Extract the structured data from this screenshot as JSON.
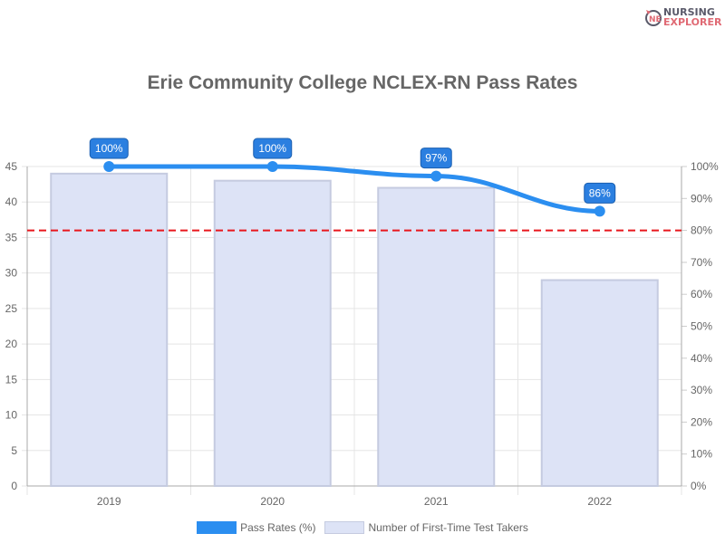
{
  "logo": {
    "line1": "NURSING",
    "line2": "EXPLORER"
  },
  "chart_data": {
    "type": "bar+line",
    "title": "Erie Community College NCLEX-RN Pass Rates",
    "categories": [
      "2019",
      "2020",
      "2021",
      "2022"
    ],
    "series": [
      {
        "name": "Pass Rates (%)",
        "type": "line",
        "axis": "right",
        "values": [
          100,
          100,
          97,
          86
        ],
        "labels": [
          "100%",
          "100%",
          "97%",
          "86%"
        ],
        "color": "#2b8ef0"
      },
      {
        "name": "Number of First-Time Test Takers",
        "type": "bar",
        "axis": "left",
        "values": [
          44,
          43,
          42,
          29
        ],
        "color": "#dde3f6"
      }
    ],
    "y_left": {
      "min": 0,
      "max": 45,
      "ticks": [
        "0",
        "5",
        "10",
        "15",
        "20",
        "25",
        "30",
        "35",
        "40",
        "45"
      ]
    },
    "y_right": {
      "min": 0,
      "max": 100,
      "ticks": [
        "0%",
        "10%",
        "20%",
        "30%",
        "40%",
        "50%",
        "60%",
        "70%",
        "80%",
        "90%",
        "100%"
      ]
    },
    "reference_line": {
      "value": 80,
      "axis": "right",
      "color": "#e8171d",
      "style": "dashed"
    },
    "grid": true,
    "legend": "bottom"
  }
}
